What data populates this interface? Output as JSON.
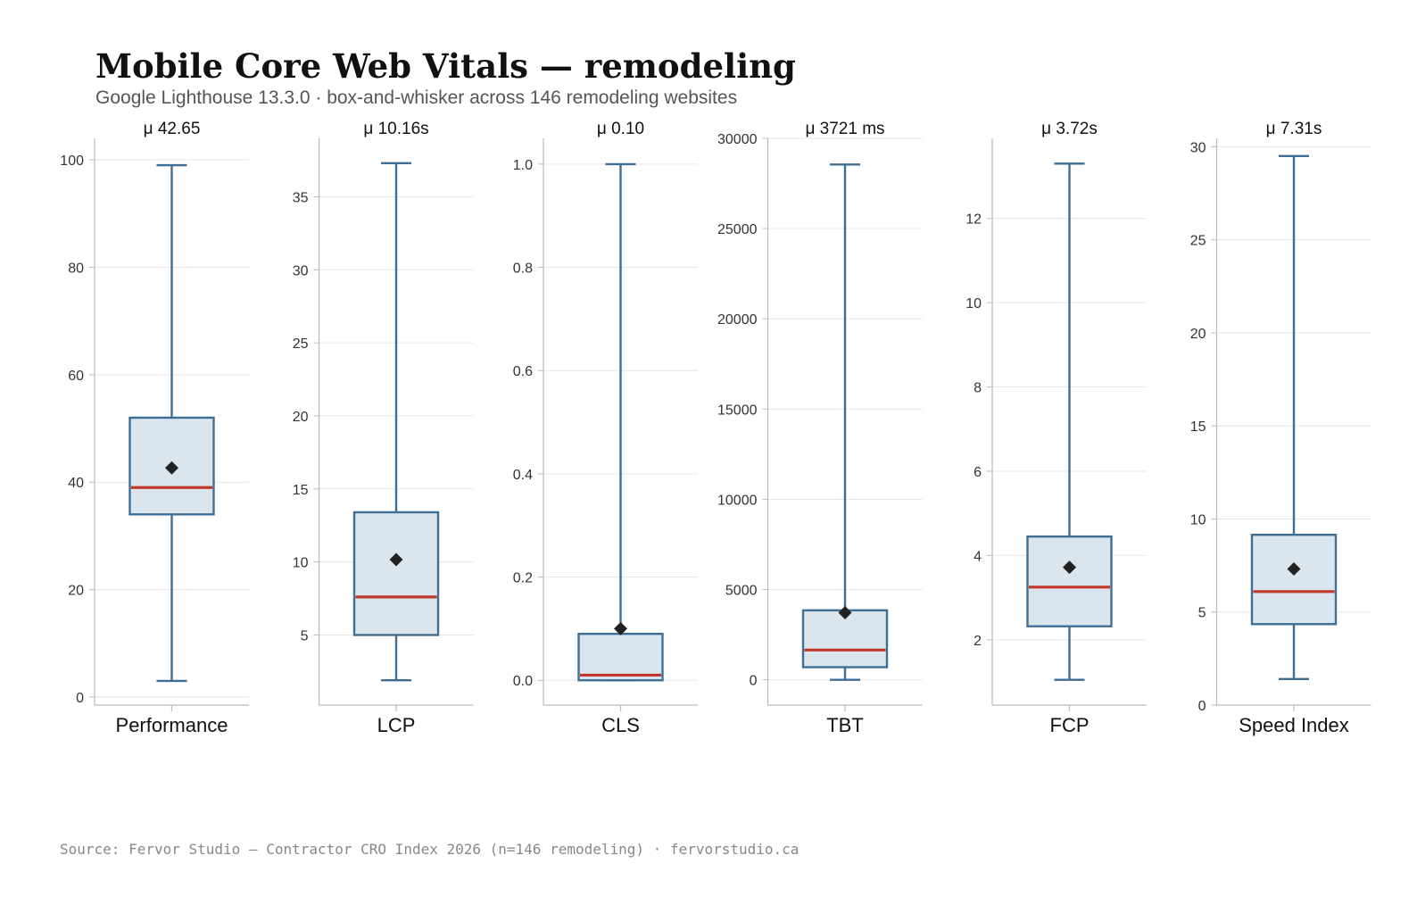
{
  "title": "Mobile Core Web Vitals — remodeling",
  "subtitle": "Google Lighthouse 13.3.0 · box-and-whisker across 146 remodeling websites",
  "source": "Source: Fervor Studio — Contractor CRO Index 2026 (n=146 remodeling) · fervorstudio.ca",
  "colors": {
    "box_fill": "#dbe5ee",
    "box_stroke": "#3f6e94",
    "median": "#c0392b",
    "mean_marker": "#222222",
    "grid": "#e6e6e6",
    "axis": "#bbbbbb"
  },
  "chart_data": [
    {
      "type": "box",
      "category": "Performance",
      "mean_label": "μ 42.65",
      "whisker_low": 3,
      "q1": 34,
      "median": 39,
      "q3": 52,
      "whisker_high": 99,
      "mean": 42.65,
      "ylim": [
        -1.5,
        104
      ],
      "ticks": [
        0,
        20,
        40,
        60,
        80,
        100
      ],
      "tick_labels": [
        "0",
        "20",
        "40",
        "60",
        "80",
        "100"
      ],
      "grid": true
    },
    {
      "type": "box",
      "category": "LCP",
      "mean_label": "μ 10.16s",
      "whisker_low": 1.9,
      "q1": 5.0,
      "median": 7.6,
      "q3": 13.4,
      "whisker_high": 37.3,
      "mean": 10.16,
      "ylim": [
        0.2,
        39
      ],
      "ticks": [
        5,
        10,
        15,
        20,
        25,
        30,
        35
      ],
      "tick_labels": [
        "5",
        "10",
        "15",
        "20",
        "25",
        "30",
        "35"
      ],
      "grid": true
    },
    {
      "type": "box",
      "category": "CLS",
      "mean_label": "μ 0.10",
      "whisker_low": 0.0,
      "q1": 0.0,
      "median": 0.01,
      "q3": 0.09,
      "whisker_high": 1.0,
      "mean": 0.1,
      "ylim": [
        -0.048,
        1.05
      ],
      "ticks": [
        0.0,
        0.2,
        0.4,
        0.6,
        0.8,
        1.0
      ],
      "tick_labels": [
        "0.0",
        "0.2",
        "0.4",
        "0.6",
        "0.8",
        "1.0"
      ],
      "grid": true
    },
    {
      "type": "box",
      "category": "TBT",
      "mean_label": "μ 3721 ms",
      "whisker_low": 0,
      "q1": 700,
      "median": 1650,
      "q3": 3850,
      "whisker_high": 28550,
      "mean": 3721,
      "ylim": [
        -1400,
        30000
      ],
      "ticks": [
        0,
        5000,
        10000,
        15000,
        20000,
        25000,
        30000
      ],
      "tick_labels": [
        "0",
        "5000",
        "10000",
        "15000",
        "20000",
        "25000",
        "30000"
      ],
      "grid": true
    },
    {
      "type": "box",
      "category": "FCP",
      "mean_label": "μ 3.72s",
      "whisker_low": 1.05,
      "q1": 2.32,
      "median": 3.25,
      "q3": 4.45,
      "whisker_high": 13.3,
      "mean": 3.72,
      "ylim": [
        0.45,
        13.9
      ],
      "ticks": [
        2,
        4,
        6,
        8,
        10,
        12
      ],
      "tick_labels": [
        "2",
        "4",
        "6",
        "8",
        "10",
        "12"
      ],
      "grid": true
    },
    {
      "type": "box",
      "category": "Speed Index",
      "mean_label": "μ 7.31s",
      "whisker_low": 1.4,
      "q1": 4.35,
      "median": 6.1,
      "q3": 9.15,
      "whisker_high": 29.5,
      "mean": 7.31,
      "ylim": [
        0,
        30.45
      ],
      "ticks": [
        0,
        5,
        10,
        15,
        20,
        25,
        30
      ],
      "tick_labels": [
        "0",
        "5",
        "10",
        "15",
        "20",
        "25",
        "30"
      ],
      "grid": true
    }
  ]
}
